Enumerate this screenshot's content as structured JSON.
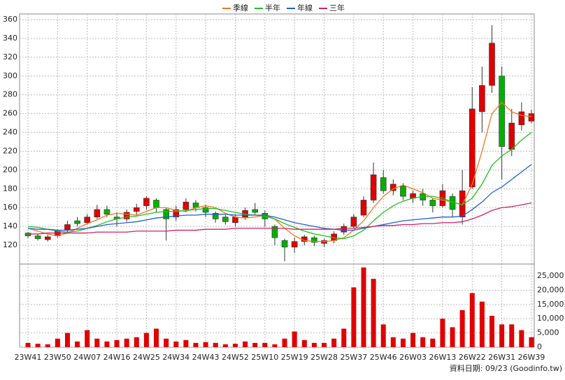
{
  "chart_data": [
    {
      "type": "candlestick",
      "categories": [
        "23W41",
        null,
        null,
        "23W50",
        null,
        null,
        "24W07",
        null,
        null,
        "24W16",
        null,
        null,
        "24W25",
        null,
        null,
        "24W34",
        null,
        null,
        "24W43",
        null,
        null,
        "24W52",
        null,
        null,
        "25W10",
        null,
        null,
        "25W19",
        null,
        null,
        "25W28",
        null,
        null,
        "25W37",
        null,
        null,
        "25W46",
        null,
        null,
        "26W03",
        null,
        null,
        "26W13",
        null,
        null,
        "26W22",
        null,
        null,
        "26W31",
        null,
        null,
        "26W39"
      ],
      "open": [
        133,
        130,
        126,
        130,
        136,
        146,
        144,
        150,
        158,
        150,
        148,
        156,
        162,
        168,
        158,
        150,
        158,
        165,
        160,
        154,
        150,
        144,
        150,
        158,
        154,
        140,
        125,
        118,
        124,
        128,
        122,
        125,
        134,
        140,
        152,
        168,
        192,
        178,
        183,
        170,
        175,
        168,
        162,
        172,
        150,
        182,
        262,
        290,
        300,
        222,
        248,
        252
      ],
      "high": [
        134,
        132,
        131,
        137,
        146,
        150,
        153,
        163,
        162,
        155,
        158,
        164,
        172,
        170,
        160,
        162,
        170,
        168,
        163,
        156,
        152,
        153,
        160,
        165,
        157,
        142,
        127,
        128,
        131,
        130,
        127,
        135,
        143,
        153,
        172,
        208,
        200,
        190,
        186,
        178,
        180,
        170,
        185,
        175,
        200,
        288,
        310,
        354,
        310,
        265,
        272,
        264
      ],
      "low": [
        128,
        125,
        124,
        128,
        134,
        140,
        142,
        148,
        150,
        140,
        145,
        152,
        158,
        155,
        125,
        146,
        155,
        156,
        150,
        144,
        142,
        140,
        147,
        152,
        140,
        120,
        103,
        112,
        120,
        119,
        118,
        122,
        131,
        138,
        150,
        165,
        175,
        173,
        168,
        165,
        162,
        155,
        160,
        150,
        142,
        180,
        240,
        282,
        190,
        215,
        242,
        250
      ],
      "close": [
        130,
        127,
        129,
        135,
        142,
        143,
        150,
        158,
        153,
        148,
        155,
        160,
        170,
        160,
        148,
        158,
        166,
        160,
        155,
        148,
        145,
        150,
        157,
        155,
        148,
        128,
        118,
        124,
        129,
        123,
        125,
        132,
        140,
        150,
        168,
        195,
        178,
        185,
        172,
        175,
        168,
        162,
        178,
        158,
        178,
        265,
        290,
        335,
        225,
        250,
        262,
        260
      ],
      "up_color": "#e00000",
      "down_color": "#00b000",
      "series": [
        {
          "name": "季線",
          "color": "#f07820",
          "values": [
            138,
            135,
            132,
            130,
            133,
            138,
            143,
            147,
            152,
            154,
            153,
            152,
            156,
            160,
            160,
            157,
            156,
            160,
            162,
            160,
            154,
            150,
            149,
            150,
            152,
            148,
            138,
            130,
            125,
            124,
            124,
            125,
            128,
            136,
            146,
            160,
            172,
            180,
            184,
            180,
            176,
            170,
            168,
            166,
            163,
            185,
            220,
            260,
            272,
            262,
            258,
            257
          ]
        },
        {
          "name": "半年",
          "color": "#20c020",
          "values": [
            140,
            139,
            137,
            135,
            134,
            135,
            138,
            141,
            145,
            148,
            150,
            151,
            153,
            155,
            156,
            156,
            157,
            158,
            159,
            159,
            157,
            155,
            153,
            152,
            151,
            148,
            143,
            139,
            135,
            132,
            130,
            128,
            127,
            130,
            136,
            146,
            155,
            162,
            167,
            170,
            172,
            172,
            170,
            166,
            163,
            170,
            185,
            205,
            215,
            222,
            232,
            240
          ]
        },
        {
          "name": "年線",
          "color": "#2060d0",
          "values": [
            138,
            137,
            137,
            136,
            136,
            137,
            138,
            140,
            142,
            143,
            144,
            145,
            147,
            149,
            150,
            151,
            152,
            152,
            153,
            153,
            153,
            152,
            152,
            152,
            152,
            150,
            147,
            144,
            142,
            140,
            138,
            137,
            136,
            136,
            138,
            140,
            142,
            144,
            146,
            147,
            148,
            149,
            150,
            150,
            151,
            158,
            166,
            176,
            182,
            190,
            198,
            206
          ]
        },
        {
          "name": "三年",
          "color": "#d0206a",
          "values": [
            132,
            132,
            133,
            133,
            133,
            133,
            133,
            134,
            134,
            134,
            134,
            135,
            135,
            135,
            135,
            136,
            136,
            136,
            137,
            137,
            137,
            138,
            138,
            138,
            138,
            138,
            138,
            137,
            137,
            137,
            137,
            137,
            138,
            138,
            139,
            140,
            141,
            141,
            142,
            142,
            143,
            143,
            144,
            144,
            145,
            148,
            152,
            157,
            160,
            161,
            163,
            165
          ]
        }
      ],
      "ylim": [
        100,
        366
      ],
      "yticks": [
        120,
        140,
        160,
        180,
        200,
        220,
        240,
        260,
        280,
        300,
        320,
        340,
        360
      ],
      "grid": true,
      "legend": "top"
    },
    {
      "type": "bar",
      "color": "#e00000",
      "values": [
        1500,
        1200,
        1000,
        3000,
        5000,
        2000,
        6000,
        3000,
        2000,
        2500,
        3000,
        3500,
        5000,
        6500,
        3000,
        2000,
        2500,
        1500,
        1800,
        1500,
        1000,
        1200,
        2000,
        1500,
        1500,
        1000,
        3000,
        5500,
        2500,
        1500,
        1500,
        3000,
        6500,
        21000,
        28000,
        24000,
        8000,
        3500,
        3000,
        5000,
        3500,
        3000,
        10000,
        7000,
        13000,
        19000,
        16000,
        11000,
        8000,
        8000,
        6000,
        3500
      ],
      "ylim": [
        0,
        29200
      ],
      "yticks": [
        0,
        {
          "value": 5000,
          "label": "5,000"
        },
        {
          "value": 10000,
          "label": "10,000"
        },
        {
          "value": 15000,
          "label": "15,000"
        },
        {
          "value": 20000,
          "label": "20,000"
        },
        {
          "value": 25000,
          "label": "25,000"
        }
      ],
      "grid": true
    }
  ],
  "footer": "資料日期: 09/23 (Goodinfo.tw)"
}
